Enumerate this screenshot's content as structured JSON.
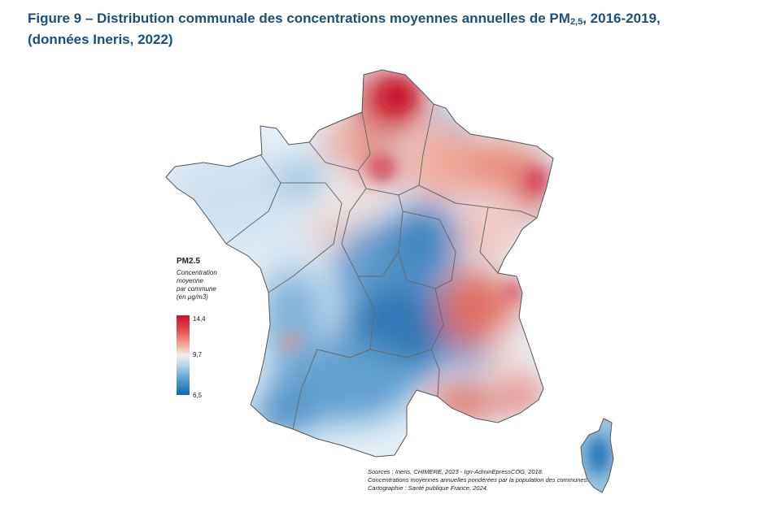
{
  "header": {
    "title_main": "Figure 9 – Distribution communale des concentrations moyennes annuelles de PM",
    "title_sub": "2,5",
    "title_rest": ", 2016-2019,",
    "title_line2": "(données Ineris, 2022)"
  },
  "legend": {
    "title": "PM2.5",
    "desc_lines": [
      "Concentration",
      "moyenne",
      "par commune",
      "(en µg/m3)"
    ],
    "max_label": "14,4",
    "mid_label": "9,7",
    "min_label": "6,5",
    "colors": {
      "high": "#c8102e",
      "mid": "#f3eeee",
      "low": "#0e6aad"
    }
  },
  "sources": {
    "line1": "Sources : Ineris, CHIMERE, 2023 - Ign-AdminEpressCOG, 2018.",
    "line2": "Concentrations moyennes annuelles pondérées par la population des communes.",
    "line3": "Cartographie : Santé publique France, 2024."
  }
}
